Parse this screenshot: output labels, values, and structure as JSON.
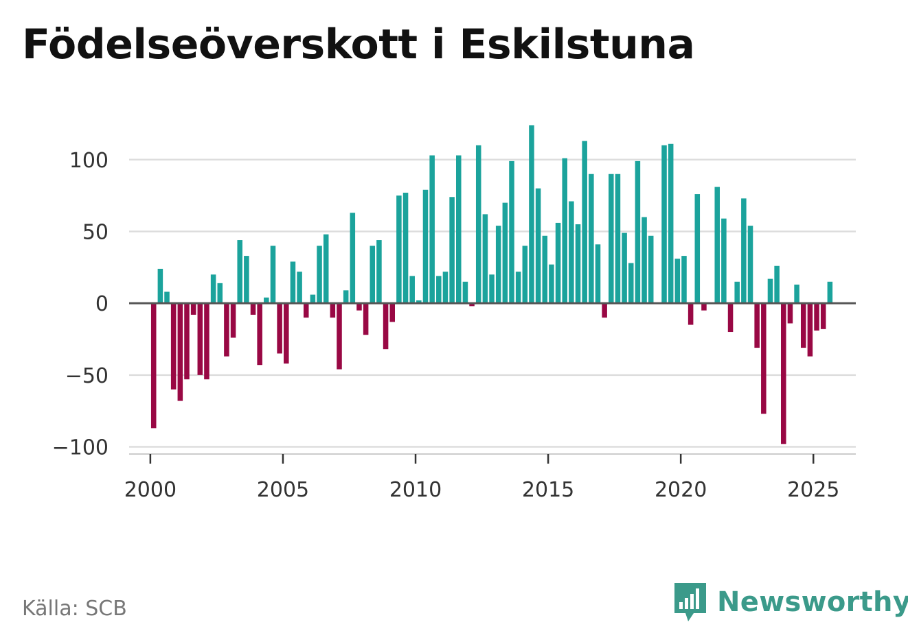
{
  "title": "Födelseöverskott i Eskilstuna",
  "source": "Källa: SCB",
  "brand": {
    "name": "Newsworthy",
    "logo_icon": "newsworthy-bar-chart-bubble-icon"
  },
  "colors": {
    "positive": "#1ba39c",
    "negative": "#990844",
    "grid": "#dddddd",
    "zero_line": "#555555",
    "brand": "#3b9a8a"
  },
  "chart_data": {
    "type": "bar",
    "title": "Födelseöverskott i Eskilstuna",
    "xlabel": "",
    "ylabel": "",
    "ylim": [
      -105,
      130
    ],
    "xlim": [
      1999.2,
      2026.6
    ],
    "yticks": [
      100,
      50,
      0,
      -50,
      -100
    ],
    "ytick_labels": [
      "100",
      "50",
      "0",
      "−50",
      "−100"
    ],
    "xticks": [
      2000,
      2005,
      2010,
      2015,
      2020,
      2025
    ],
    "xtick_labels": [
      "2000",
      "2005",
      "2010",
      "2015",
      "2020",
      "2025"
    ],
    "frequency": "quarterly",
    "start": 2000.125,
    "step": 0.25,
    "values": [
      -87,
      24,
      8,
      -60,
      -68,
      -53,
      -8,
      -50,
      -53,
      20,
      14,
      -37,
      -24,
      44,
      33,
      -8,
      -43,
      4,
      40,
      -35,
      -42,
      29,
      22,
      -10,
      6,
      40,
      48,
      -10,
      -46,
      9,
      63,
      -5,
      -22,
      40,
      44,
      -32,
      -13,
      75,
      77,
      19,
      2,
      79,
      103,
      19,
      22,
      74,
      103,
      15,
      -2,
      110,
      62,
      20,
      54,
      70,
      99,
      22,
      40,
      124,
      80,
      47,
      27,
      56,
      101,
      71,
      55,
      113,
      90,
      41,
      -10,
      90,
      90,
      49,
      28,
      99,
      60,
      47,
      0,
      110,
      111,
      31,
      33,
      -15,
      76,
      -5,
      0,
      81,
      59,
      -20,
      15,
      73,
      54,
      -31,
      -77,
      17,
      26,
      -98,
      -14,
      13,
      -31,
      -37,
      -19,
      -18,
      15
    ]
  }
}
